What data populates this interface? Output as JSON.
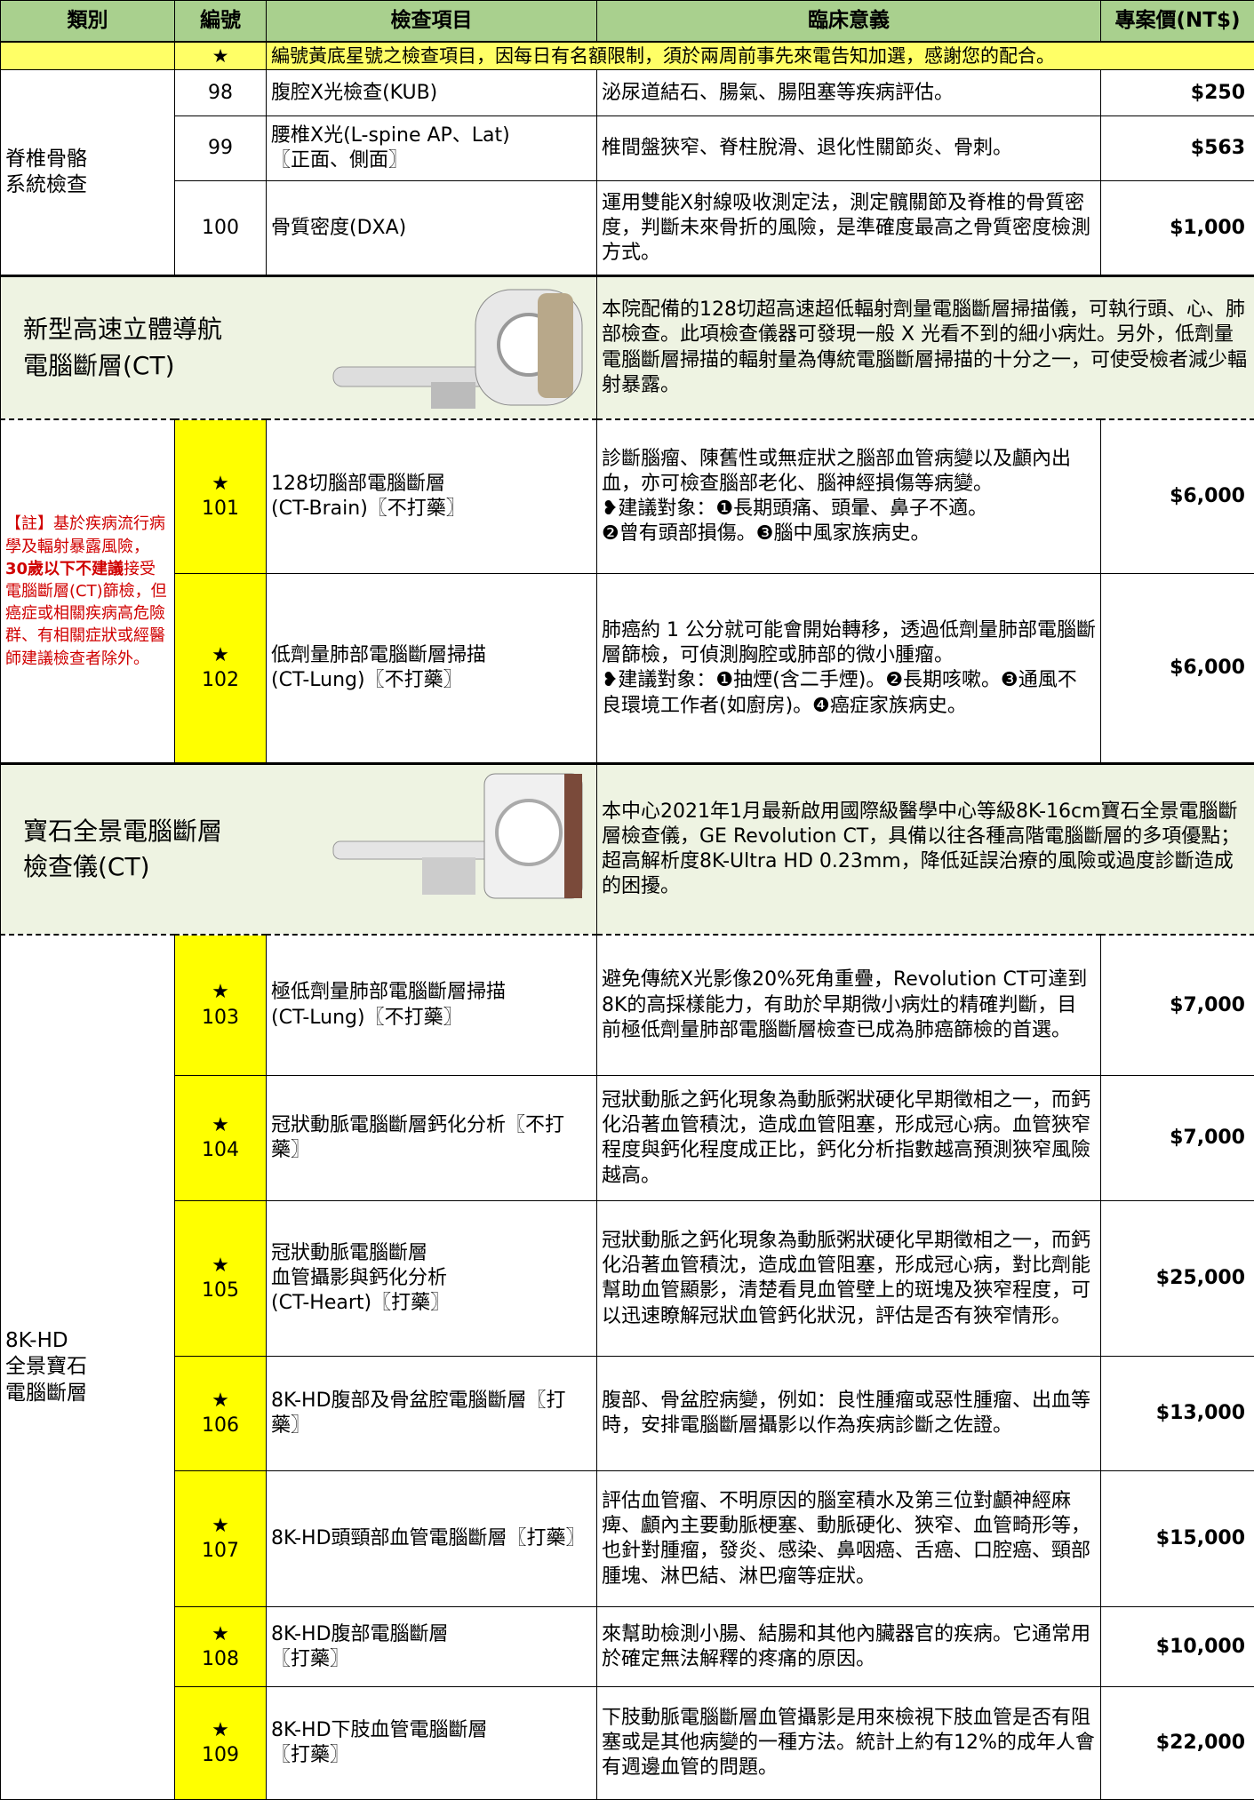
{
  "header": [
    "類別",
    "編號",
    "檢查項目",
    "臨床意義",
    "專案價(NT$)"
  ],
  "notice": {
    "star": "★",
    "text": "編號黃底星號之檢查項目，因每日有名額限制，須於兩周前事先來電告知加選，感謝您的配合。"
  },
  "sections": [
    {
      "category": "脊椎骨骼\n系統檢查",
      "items": [
        {
          "no": "98",
          "name": "腹腔X光檢查(KUB)",
          "meaning": "泌尿道結石、腸氣、腸阻塞等疾病評估。",
          "price": "$250"
        },
        {
          "no": "99",
          "name": "腰椎X光(L-spine AP、Lat)\n〖正面、側面〗",
          "meaning": "椎間盤狹窄、脊柱脫滑、退化性關節炎、骨刺。",
          "price": "$563"
        },
        {
          "no": "100",
          "name": "骨質密度(DXA)",
          "meaning": "運用雙能X射線吸收測定法，測定髖關節及脊椎的骨質密度，判斷未來骨折的風險，是準確度最高之骨質密度檢測方式。",
          "price": "$1,000"
        }
      ]
    },
    {
      "intro": {
        "title": "新型高速立體導航\n電腦斷層(CT)",
        "text": "本院配備的128切超高速超低輻射劑量電腦斷層掃描儀，可執行頭、心、肺部檢查。此項檢查儀器可發現一般 X 光看不到的細小病灶。另外，低劑量電腦斷層掃描的輻射量為傳統電腦斷層掃描的十分之一，可使受檢者減少輻射暴露。"
      }
    },
    {
      "note": [
        "【註】基於疾病流行病學及輻射暴露風險，",
        "30歲以下不建議",
        "接受電腦斷層(CT)篩檢，但癌症或相關疾病高危險群、有相關症狀或經醫師建議檢查者除外。"
      ],
      "items": [
        {
          "star": "★",
          "no": "101",
          "name": "128切腦部電腦斷層\n(CT-Brain)〖不打藥〗",
          "meaning": "診斷腦瘤、陳舊性或無症狀之腦部血管病變以及顱內出血，亦可檢查腦部老化、腦神經損傷等病變。\n❥建議對象：❶長期頭痛、頭暈、鼻子不適。\n❷曾有頭部損傷。❸腦中風家族病史。",
          "price": "$6,000"
        },
        {
          "star": "★",
          "no": "102",
          "name": "低劑量肺部電腦斷層掃描\n(CT-Lung)〖不打藥〗",
          "meaning": "肺癌約 1 公分就可能會開始轉移，透過低劑量肺部電腦斷層篩檢，可偵測胸腔或肺部的微小腫瘤。\n❥建議對象：❶抽煙(含二手煙)。❷長期咳嗽。❸通風不良環境工作者(如廚房)。❹癌症家族病史。",
          "price": "$6,000"
        }
      ]
    },
    {
      "intro": {
        "title": "寶石全景電腦斷層\n檢查儀(CT)",
        "text": "本中心2021年1月最新啟用國際級醫學中心等級8K-16cm寶石全景電腦斷層檢查儀，GE Revolution CT，具備以往各種高階電腦斷層的多項優點；超高解析度8K-Ultra HD 0.23mm，降低延誤治療的風險或過度診斷造成的困擾。"
      }
    },
    {
      "category": "8K-HD\n全景寶石\n電腦斷層",
      "items": [
        {
          "star": "★",
          "no": "103",
          "name": "極低劑量肺部電腦斷層掃描\n(CT-Lung)〖不打藥〗",
          "meaning": "避免傳統X光影像20%死角重疊，Revolution CT可達到8K的高採樣能力，有助於早期微小病灶的精確判斷，目前極低劑量肺部電腦斷層檢查已成為肺癌篩檢的首選。",
          "price": "$7,000"
        },
        {
          "star": "★",
          "no": "104",
          "name": "冠狀動脈電腦斷層鈣化分析〖不打藥〗",
          "meaning": "冠狀動脈之鈣化現象為動脈粥狀硬化早期徵相之一，而鈣化沿著血管積沈，造成血管阻塞，形成冠心病。血管狹窄程度與鈣化程度成正比，鈣化分析指數越高預測狹窄風險越高。",
          "price": "$7,000"
        },
        {
          "star": "★",
          "no": "105",
          "name": "冠狀動脈電腦斷層\n血管攝影與鈣化分析\n(CT-Heart)〖打藥〗",
          "meaning": "冠狀動脈之鈣化現象為動脈粥狀硬化早期徵相之一，而鈣化沿著血管積沈，造成血管阻塞，形成冠心病，對比劑能幫助血管顯影，清楚看見血管壁上的斑塊及狹窄程度，可以迅速瞭解冠狀血管鈣化狀況，評估是否有狹窄情形。",
          "price": "$25,000"
        },
        {
          "star": "★",
          "no": "106",
          "name": "8K-HD腹部及骨盆腔電腦斷層〖打藥〗",
          "meaning": "腹部、骨盆腔病變，例如：良性腫瘤或惡性腫瘤、出血等時，安排電腦斷層攝影以作為疾病診斷之佐證。",
          "price": "$13,000"
        },
        {
          "star": "★",
          "no": "107",
          "name": "8K-HD頭頸部血管電腦斷層〖打藥〗",
          "meaning": "評估血管瘤、不明原因的腦室積水及第三位對顱神經麻痺、顱內主要動脈梗塞、動脈硬化、狹窄、血管畸形等，也針對腫瘤，發炎、感染、鼻咽癌、舌癌、口腔癌、頸部腫塊、淋巴結、淋巴瘤等症狀。",
          "price": "$15,000"
        },
        {
          "star": "★",
          "no": "108",
          "name": "8K-HD腹部電腦斷層\n〖打藥〗",
          "meaning": "來幫助檢測小腸、結腸和其他內臟器官的疾病。它通常用於確定無法解釋的疼痛的原因。",
          "price": "$10,000"
        },
        {
          "star": "★",
          "no": "109",
          "name": "8K-HD下肢血管電腦斷層\n〖打藥〗",
          "meaning": "下肢動脈電腦斷層血管攝影是用來檢視下肢血管是否有阻塞或是其他病變的一種方法。統計上約有12%的成年人會有週邊血管的問題。",
          "price": "$22,000"
        }
      ]
    }
  ]
}
